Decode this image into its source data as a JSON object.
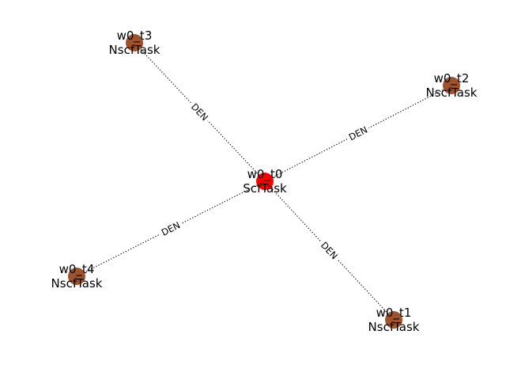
{
  "graph": {
    "nodes": [
      {
        "id": "w0_t0",
        "label_line1": "w0_t0",
        "label_line2": "ScfTask",
        "color": "#ff0000"
      },
      {
        "id": "w0_t1",
        "label_line1": "w0_t1",
        "label_line2": "NscfTask",
        "color": "#a0522d"
      },
      {
        "id": "w0_t2",
        "label_line1": "w0_t2",
        "label_line2": "NscfTask",
        "color": "#a0522d"
      },
      {
        "id": "w0_t3",
        "label_line1": "w0_t3",
        "label_line2": "NscfTask",
        "color": "#a0522d"
      },
      {
        "id": "w0_t4",
        "label_line1": "w0_t4",
        "label_line2": "NscfTask",
        "color": "#a0522d"
      }
    ],
    "edges": [
      {
        "source": "w0_t0",
        "target": "w0_t1",
        "label": "DEN"
      },
      {
        "source": "w0_t0",
        "target": "w0_t2",
        "label": "DEN"
      },
      {
        "source": "w0_t0",
        "target": "w0_t3",
        "label": "DEN"
      },
      {
        "source": "w0_t0",
        "target": "w0_t4",
        "label": "DEN"
      }
    ],
    "edge_style": "dotted"
  }
}
